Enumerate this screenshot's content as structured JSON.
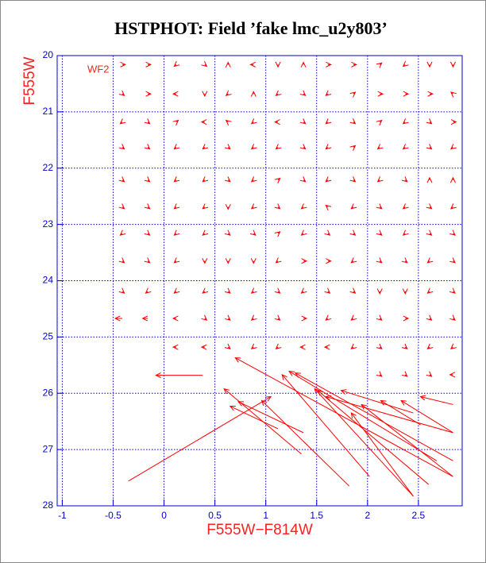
{
  "chart_data": {
    "type": "vector",
    "title": "HSTPHOT: Field ’fake lmc_u2y803’",
    "xlabel": "F555W−F814W",
    "ylabel": "F555W",
    "annotation": "WF2",
    "xlim": [
      -1.05,
      2.93
    ],
    "ylim": [
      28,
      20
    ],
    "xticks": [
      -1,
      -0.5,
      0,
      0.5,
      1,
      1.5,
      2,
      2.5
    ],
    "yticks": [
      20,
      21,
      22,
      23,
      24,
      25,
      26,
      27,
      28
    ],
    "grid": true,
    "color": "#ff0000",
    "grid_color": "#0000cc",
    "arrows": [
      [
        -0.41,
        20.16,
        0.03,
        0
      ],
      [
        -0.16,
        20.16,
        0.03,
        0
      ],
      [
        0.12,
        20.16,
        -0.02,
        0.03
      ],
      [
        0.4,
        20.16,
        0.02,
        0.03
      ],
      [
        0.63,
        20.16,
        0,
        -0.04
      ],
      [
        0.88,
        20.16,
        -0.03,
        0
      ],
      [
        1.12,
        20.16,
        0,
        0.04
      ],
      [
        1.37,
        20.16,
        0,
        -0.04
      ],
      [
        1.61,
        20.16,
        0.03,
        0
      ],
      [
        1.86,
        20.16,
        0.03,
        0
      ],
      [
        2.12,
        20.16,
        0.02,
        -0.03
      ],
      [
        2.37,
        20.16,
        -0.02,
        0.03
      ],
      [
        2.61,
        20.16,
        0,
        0.04
      ],
      [
        2.84,
        20.16,
        0,
        0.04
      ],
      [
        -0.41,
        20.68,
        0.02,
        0.03
      ],
      [
        -0.16,
        20.68,
        0.03,
        0
      ],
      [
        0.12,
        20.68,
        -0.03,
        0
      ],
      [
        0.4,
        20.68,
        0,
        0.04
      ],
      [
        0.63,
        20.68,
        -0.02,
        0.03
      ],
      [
        0.88,
        20.68,
        0,
        -0.04
      ],
      [
        1.12,
        20.68,
        -0.02,
        0.03
      ],
      [
        1.37,
        20.68,
        0.02,
        0.03
      ],
      [
        1.61,
        20.68,
        -0.02,
        0.03
      ],
      [
        1.86,
        20.68,
        0.02,
        -0.03
      ],
      [
        2.12,
        20.68,
        0.03,
        0
      ],
      [
        2.37,
        20.68,
        0.03,
        0
      ],
      [
        2.61,
        20.68,
        0.03,
        0
      ],
      [
        2.84,
        20.68,
        -0.02,
        -0.03
      ],
      [
        -0.41,
        21.18,
        -0.02,
        0.03
      ],
      [
        -0.16,
        21.18,
        0.02,
        0.03
      ],
      [
        0.12,
        21.18,
        0.02,
        -0.03
      ],
      [
        0.4,
        21.18,
        -0.03,
        0
      ],
      [
        0.63,
        21.18,
        -0.02,
        -0.03
      ],
      [
        0.88,
        21.18,
        -0.02,
        0.03
      ],
      [
        1.12,
        21.18,
        -0.03,
        0
      ],
      [
        1.37,
        21.18,
        0.02,
        0.03
      ],
      [
        1.61,
        21.18,
        -0.02,
        0.03
      ],
      [
        1.86,
        21.18,
        0.02,
        0.03
      ],
      [
        2.12,
        21.18,
        0.02,
        -0.03
      ],
      [
        2.37,
        21.18,
        -0.02,
        0.03
      ],
      [
        2.61,
        21.18,
        0.02,
        0.03
      ],
      [
        2.84,
        21.18,
        0.03,
        0
      ],
      [
        -0.41,
        21.63,
        0.02,
        0.03
      ],
      [
        -0.16,
        21.63,
        0.02,
        0.03
      ],
      [
        0.12,
        21.63,
        -0.02,
        0.03
      ],
      [
        0.4,
        21.63,
        -0.02,
        0.03
      ],
      [
        0.63,
        21.63,
        0.02,
        0.03
      ],
      [
        0.88,
        21.63,
        -0.02,
        0.03
      ],
      [
        1.12,
        21.63,
        -0.02,
        0.03
      ],
      [
        1.37,
        21.63,
        0.02,
        0.03
      ],
      [
        1.61,
        21.63,
        -0.02,
        0.03
      ],
      [
        1.86,
        21.63,
        0.02,
        -0.03
      ],
      [
        2.12,
        21.63,
        -0.02,
        0.03
      ],
      [
        2.37,
        21.63,
        -0.02,
        0.03
      ],
      [
        2.61,
        21.63,
        0.02,
        0.03
      ],
      [
        2.84,
        21.63,
        -0.02,
        0.03
      ],
      [
        -0.41,
        22.21,
        0.02,
        0.03
      ],
      [
        -0.16,
        22.21,
        0.02,
        0.03
      ],
      [
        0.12,
        22.21,
        -0.02,
        0.03
      ],
      [
        0.4,
        22.21,
        -0.02,
        0.03
      ],
      [
        0.63,
        22.21,
        0.02,
        0.03
      ],
      [
        0.88,
        22.21,
        -0.02,
        0.03
      ],
      [
        1.12,
        22.21,
        0.02,
        -0.03
      ],
      [
        1.37,
        22.21,
        0.02,
        0.03
      ],
      [
        1.61,
        22.21,
        -0.02,
        0.03
      ],
      [
        1.86,
        22.21,
        0.02,
        0.03
      ],
      [
        2.12,
        22.21,
        -0.02,
        0.03
      ],
      [
        2.37,
        22.21,
        0.02,
        0.03
      ],
      [
        2.61,
        22.21,
        0,
        -0.04
      ],
      [
        2.84,
        22.21,
        0,
        -0.04
      ],
      [
        -0.41,
        22.69,
        0.02,
        0.03
      ],
      [
        -0.16,
        22.69,
        0.02,
        0.03
      ],
      [
        0.12,
        22.69,
        -0.02,
        0.03
      ],
      [
        0.4,
        22.69,
        -0.02,
        0.03
      ],
      [
        0.63,
        22.69,
        0,
        0.04
      ],
      [
        0.88,
        22.69,
        -0.02,
        0.03
      ],
      [
        1.12,
        22.69,
        0.02,
        0.03
      ],
      [
        1.37,
        22.69,
        -0.02,
        0.03
      ],
      [
        1.61,
        22.69,
        -0.02,
        -0.03
      ],
      [
        1.86,
        22.69,
        -0.02,
        0.03
      ],
      [
        2.12,
        22.69,
        0.02,
        0.03
      ],
      [
        2.37,
        22.69,
        -0.02,
        0.03
      ],
      [
        2.61,
        22.69,
        0.02,
        0.03
      ],
      [
        2.84,
        22.69,
        -0.02,
        0.03
      ],
      [
        -0.41,
        23.16,
        -0.02,
        0.03
      ],
      [
        -0.16,
        23.16,
        0.02,
        0.03
      ],
      [
        0.12,
        23.16,
        -0.02,
        0.03
      ],
      [
        0.4,
        23.16,
        -0.02,
        0.03
      ],
      [
        0.63,
        23.16,
        0.02,
        0.03
      ],
      [
        0.88,
        23.16,
        0.02,
        0.03
      ],
      [
        1.12,
        23.16,
        0.02,
        -0.03
      ],
      [
        1.37,
        23.16,
        -0.02,
        0.03
      ],
      [
        1.61,
        23.16,
        0.02,
        0.03
      ],
      [
        1.86,
        23.16,
        0.02,
        0.03
      ],
      [
        2.12,
        23.16,
        0.02,
        0.03
      ],
      [
        2.37,
        23.16,
        -0.02,
        0.03
      ],
      [
        2.61,
        23.16,
        0.02,
        0.03
      ],
      [
        2.84,
        23.16,
        0.02,
        0.03
      ],
      [
        -0.41,
        23.65,
        0.02,
        0.03
      ],
      [
        -0.16,
        23.65,
        0.02,
        0.03
      ],
      [
        0.12,
        23.65,
        -0.02,
        0.03
      ],
      [
        0.4,
        23.65,
        0,
        0.04
      ],
      [
        0.63,
        23.65,
        0,
        0.04
      ],
      [
        0.88,
        23.65,
        0,
        0.04
      ],
      [
        1.12,
        23.65,
        -0.02,
        0.03
      ],
      [
        1.37,
        23.65,
        0.03,
        0
      ],
      [
        1.61,
        23.65,
        0.03,
        0
      ],
      [
        1.86,
        23.65,
        -0.02,
        0.03
      ],
      [
        2.12,
        23.65,
        0.02,
        0.03
      ],
      [
        2.37,
        23.65,
        0.02,
        0.03
      ],
      [
        2.61,
        23.65,
        -0.02,
        0.03
      ],
      [
        2.84,
        23.65,
        0.02,
        0.03
      ],
      [
        -0.41,
        24.19,
        0.02,
        0.03
      ],
      [
        -0.16,
        24.19,
        -0.02,
        0.03
      ],
      [
        0.12,
        24.19,
        -0.02,
        0.03
      ],
      [
        0.4,
        24.19,
        -0.02,
        0.03
      ],
      [
        0.63,
        24.19,
        0.02,
        0.03
      ],
      [
        0.88,
        24.19,
        -0.02,
        0.03
      ],
      [
        1.12,
        24.19,
        0.02,
        0.03
      ],
      [
        1.37,
        24.19,
        -0.02,
        0.03
      ],
      [
        1.61,
        24.19,
        0.02,
        0.03
      ],
      [
        1.86,
        24.19,
        0.02,
        0.03
      ],
      [
        2.12,
        24.19,
        0,
        0.04
      ],
      [
        2.37,
        24.19,
        0,
        0.04
      ],
      [
        2.61,
        24.19,
        -0.02,
        0.03
      ],
      [
        2.84,
        24.19,
        0.02,
        0.03
      ],
      [
        -0.41,
        24.67,
        -0.07,
        0
      ],
      [
        -0.16,
        24.67,
        -0.05,
        0
      ],
      [
        0.12,
        24.67,
        -0.03,
        0
      ],
      [
        0.4,
        24.67,
        0.02,
        0.03
      ],
      [
        0.63,
        24.67,
        0.02,
        0.03
      ],
      [
        0.88,
        24.67,
        -0.02,
        0.03
      ],
      [
        1.12,
        24.67,
        0.02,
        0.03
      ],
      [
        1.37,
        24.67,
        0.03,
        0
      ],
      [
        1.61,
        24.67,
        -0.02,
        0.03
      ],
      [
        1.86,
        24.67,
        -0.02,
        0.03
      ],
      [
        2.12,
        24.67,
        0.02,
        0.03
      ],
      [
        2.37,
        24.67,
        0.03,
        0
      ],
      [
        2.61,
        24.67,
        0.02,
        0.03
      ],
      [
        2.84,
        24.67,
        0.02,
        0.03
      ],
      [
        0.12,
        25.18,
        -0.03,
        0
      ],
      [
        0.4,
        25.18,
        -0.03,
        0
      ],
      [
        0.63,
        25.18,
        0.02,
        0.03
      ],
      [
        0.88,
        25.18,
        -0.02,
        0.03
      ],
      [
        1.12,
        25.18,
        -0.02,
        0.03
      ],
      [
        1.37,
        25.18,
        -0.03,
        0
      ],
      [
        1.61,
        25.18,
        -0.03,
        0
      ],
      [
        1.86,
        25.18,
        -0.02,
        0.03
      ],
      [
        2.12,
        25.18,
        0.02,
        0.03
      ],
      [
        2.37,
        25.18,
        0.02,
        0.03
      ],
      [
        2.61,
        25.18,
        -0.02,
        0.03
      ],
      [
        2.84,
        25.18,
        -0.02,
        0.03
      ],
      [
        2.12,
        25.67,
        0.02,
        0.03
      ],
      [
        2.37,
        25.67,
        0.02,
        0.03
      ],
      [
        2.61,
        25.67,
        0.02,
        0.03
      ],
      [
        2.84,
        25.67,
        -0.03,
        0
      ],
      [
        2.84,
        27.48,
        -2.14,
        -2.11
      ],
      [
        1.35,
        27.08,
        -0.76,
        -1.16
      ],
      [
        1.12,
        26.63,
        -0.47,
        -0.4
      ],
      [
        1.37,
        26.7,
        -0.64,
        -0.55
      ],
      [
        1.82,
        27.65,
        -0.86,
        -1.52
      ],
      [
        -0.35,
        27.56,
        1.4,
        -1.5
      ],
      [
        2.02,
        27.48,
        -0.86,
        -1.81
      ],
      [
        2.68,
        27.2,
        -1.45,
        -1.59
      ],
      [
        2.84,
        27.2,
        -1.55,
        -1.56
      ],
      [
        2.45,
        27.83,
        -0.97,
        -1.91
      ],
      [
        2.6,
        27.62,
        -1.09,
        -1.67
      ],
      [
        2.84,
        26.7,
        -1.25,
        -0.64
      ],
      [
        2.45,
        26.35,
        -0.71,
        -0.4
      ],
      [
        2.45,
        27.83,
        -0.61,
        -1.48
      ],
      [
        2.84,
        27.48,
        -0.9,
        -1.28
      ],
      [
        2.52,
        26.56,
        -0.39,
        -0.43
      ],
      [
        2.84,
        26.7,
        -0.51,
        -0.57
      ],
      [
        2.84,
        26.2,
        -0.32,
        -0.14
      ],
      [
        0.38,
        25.68,
        -0.46,
        0
      ]
    ]
  }
}
